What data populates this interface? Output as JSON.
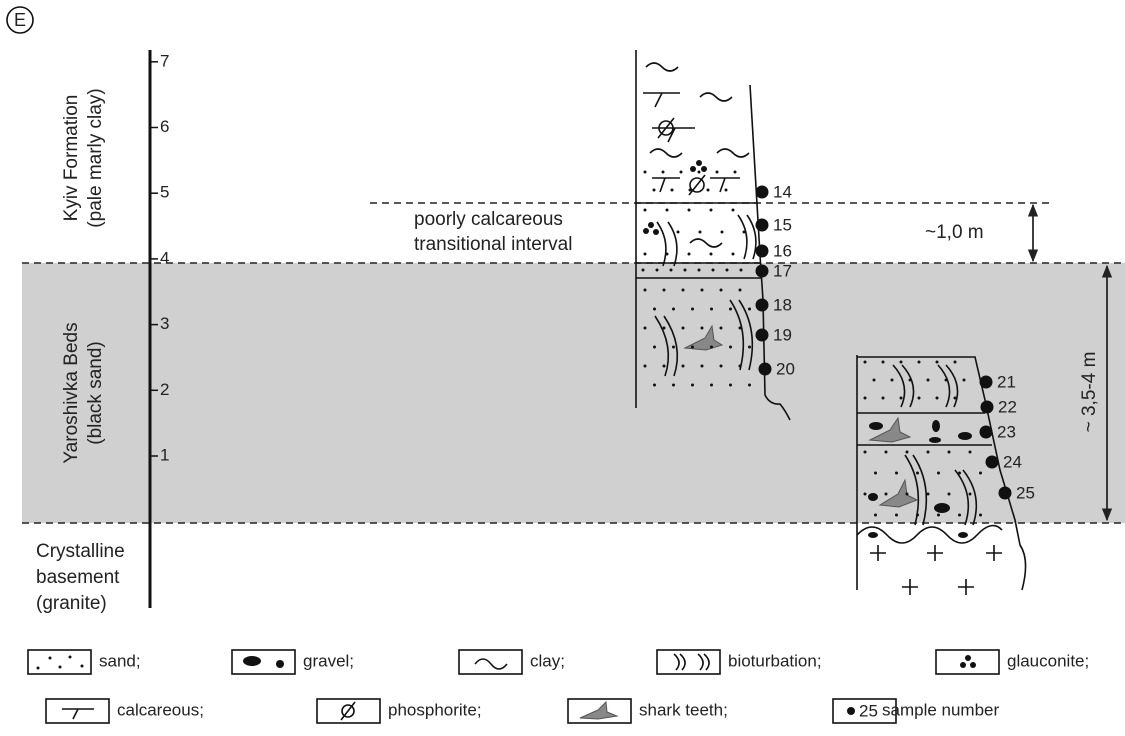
{
  "panel_label": "E",
  "scale": {
    "ticks": [
      "1",
      "2",
      "3",
      "4",
      "5",
      "6",
      "7"
    ]
  },
  "units": [
    {
      "name": "Kyiv Formation",
      "note": "(pale marly clay)"
    },
    {
      "name": "Yaroshivka Beds",
      "note": "(black sand)"
    },
    {
      "lines": [
        "Crystalline",
        "basement",
        "(granite)"
      ]
    }
  ],
  "annotations": {
    "transitional": [
      "poorly calcareous",
      "transitional interval"
    ],
    "upper_thickness": "~1,0 m",
    "lower_thickness": "~ 3,5-4 m"
  },
  "samples": [
    "14",
    "15",
    "16",
    "17",
    "18",
    "19",
    "20",
    "21",
    "22",
    "23",
    "24",
    "25"
  ],
  "legend": {
    "items": [
      "sand;",
      "gravel;",
      "clay;",
      "bioturbation;",
      "glauconite;",
      "calcareous;",
      "phosphorite;",
      "shark teeth;",
      "sample number"
    ],
    "sample_icon": "25"
  }
}
